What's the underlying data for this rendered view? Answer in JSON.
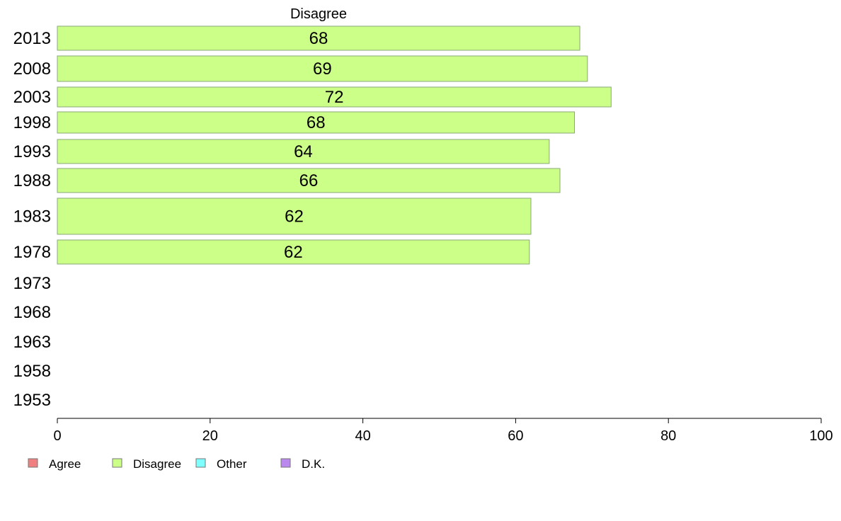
{
  "chart_data": {
    "type": "bar",
    "orientation": "horizontal",
    "title": "Disagree",
    "categories": [
      "2013",
      "2008",
      "2003",
      "1998",
      "1993",
      "1988",
      "1983",
      "1978",
      "1973",
      "1968",
      "1963",
      "1958",
      "1953"
    ],
    "series": [
      {
        "name": "Disagree",
        "color": "#ccff88",
        "values": [
          68.4,
          69.4,
          72.5,
          67.7,
          64.4,
          65.8,
          62.0,
          61.8,
          null,
          null,
          null,
          null,
          null
        ],
        "labels": [
          "68",
          "69",
          "72",
          "68",
          "64",
          "66",
          "62",
          "62",
          "",
          "",
          "",
          "",
          ""
        ]
      }
    ],
    "xlim": [
      0,
      100
    ],
    "xticks": [
      "0",
      "20",
      "40",
      "60",
      "80",
      "100"
    ],
    "xlabel": "",
    "ylabel": "",
    "legend": {
      "placement": "bottom-left",
      "items": [
        {
          "label": "Agree",
          "color": "#f08080"
        },
        {
          "label": "Disagree",
          "color": "#ccff88"
        },
        {
          "label": "Other",
          "color": "#80ffff"
        },
        {
          "label": "D.K.",
          "color": "#bb88ee"
        }
      ]
    },
    "grid": false
  }
}
